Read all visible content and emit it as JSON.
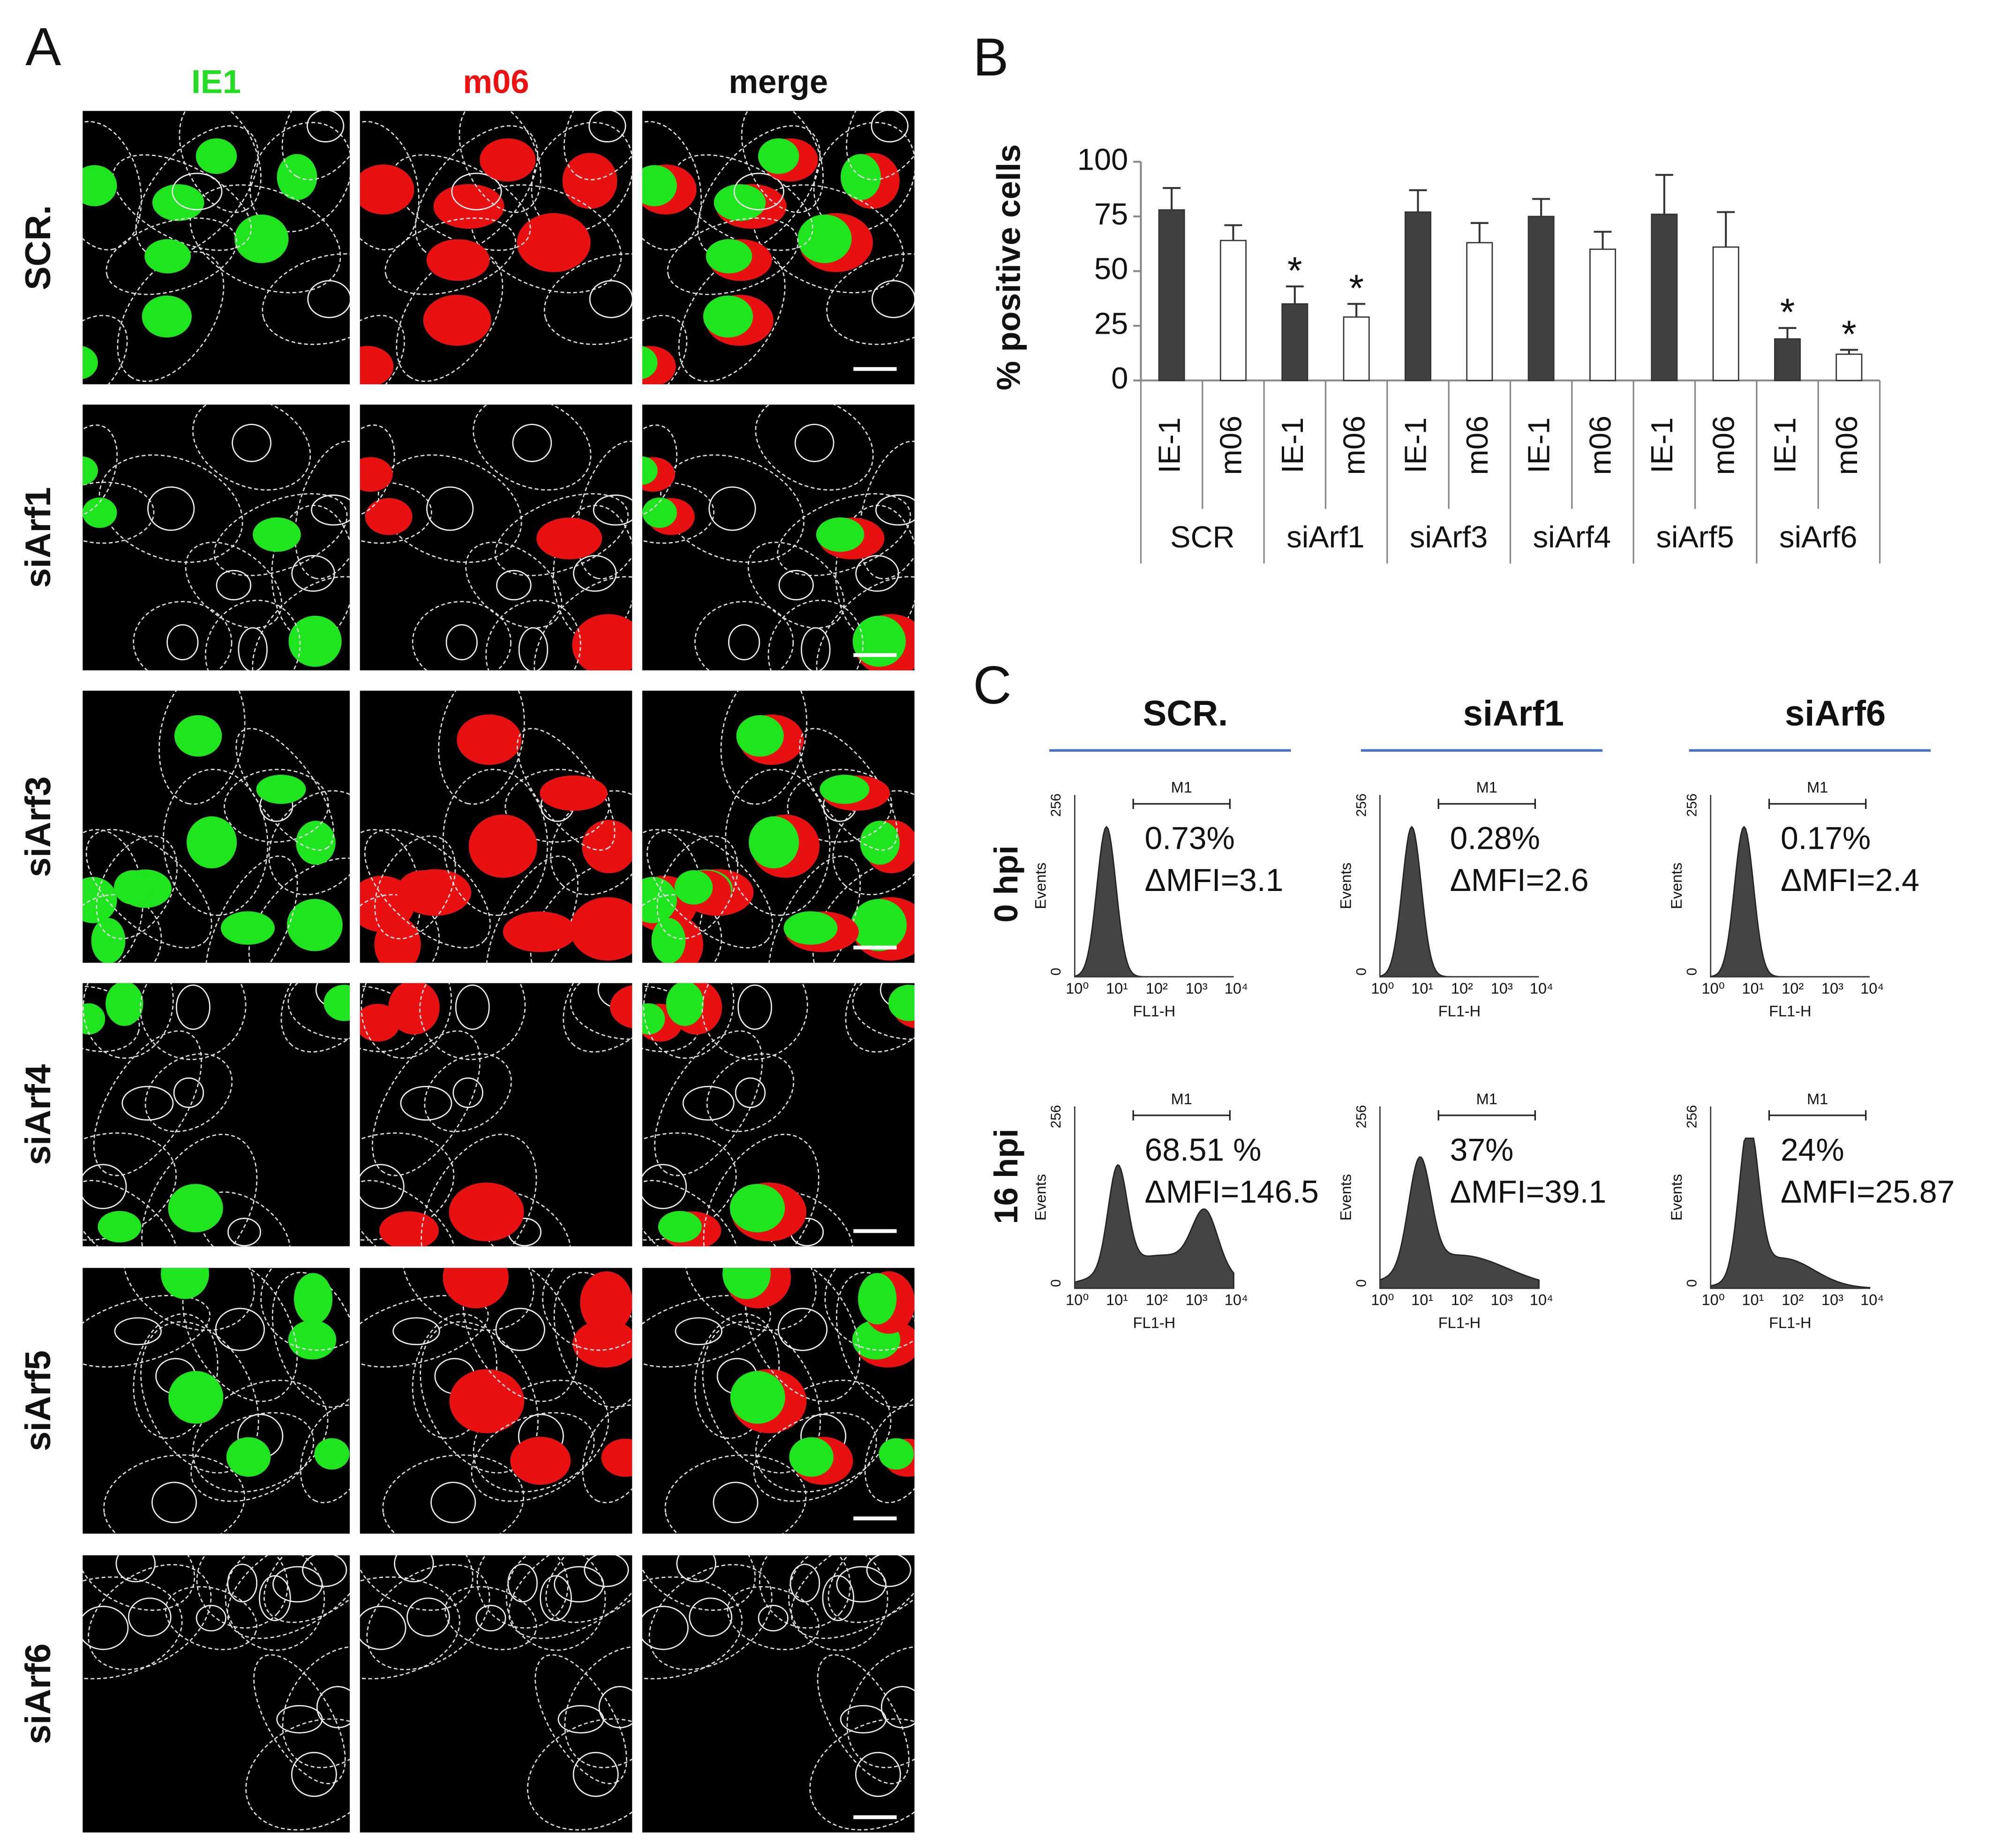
{
  "panel_a": {
    "label": "A",
    "columns": [
      {
        "text": "IE1",
        "color": "#22dd22"
      },
      {
        "text": "m06",
        "color": "#ee1111"
      },
      {
        "text": "merge",
        "color": "#111111"
      }
    ],
    "rows": [
      "SCR.",
      "siArf1",
      "siArf3",
      "siArf4",
      "siArf5",
      "siArf6"
    ]
  },
  "chart_data": {
    "type": "bar",
    "panel_label": "B",
    "y_label": "% positive cells",
    "categories": [
      "SCR",
      "siArf1",
      "siArf3",
      "siArf4",
      "siArf5",
      "siArf6"
    ],
    "series": [
      {
        "name": "IE-1",
        "color": "#404040",
        "values": [
          78,
          35,
          77,
          75,
          76,
          19
        ],
        "errors": [
          10,
          8,
          10,
          8,
          18,
          5
        ],
        "markers": [
          null,
          "*",
          null,
          null,
          null,
          "*"
        ]
      },
      {
        "name": "m06",
        "color": "#ffffff",
        "values": [
          64,
          29,
          63,
          60,
          61,
          12
        ],
        "errors": [
          7,
          6,
          9,
          8,
          16,
          2
        ],
        "markers": [
          null,
          "*",
          null,
          null,
          null,
          "*"
        ]
      }
    ],
    "ylim": [
      0,
      100
    ],
    "yticks": [
      0,
      25,
      50,
      75,
      100
    ]
  },
  "panel_c": {
    "label": "C",
    "columns": [
      "SCR.",
      "siArf1",
      "siArf6"
    ],
    "rows": [
      "0 hpi",
      "16 hpi"
    ],
    "header_line_color": "#4472c4",
    "cells": [
      [
        {
          "percent": "0.73%",
          "mfi": "ΔMFI=3.1"
        },
        {
          "percent": "0.28%",
          "mfi": "ΔMFI=2.6"
        },
        {
          "percent": "0.17%",
          "mfi": "ΔMFI=2.4"
        }
      ],
      [
        {
          "percent": "68.51 %",
          "mfi": "ΔMFI=146.5"
        },
        {
          "percent": "37%",
          "mfi": "ΔMFI=39.1"
        },
        {
          "percent": "24%",
          "mfi": "ΔMFI=25.87"
        }
      ]
    ],
    "y_axis_label": "Events",
    "y_max_label": "256",
    "y_min_label": "0",
    "x_axis_label": "FL1-H",
    "x_tick_labels": [
      "10⁰",
      "10¹",
      "10²",
      "10³",
      "10⁴"
    ],
    "gate_label": "M1"
  }
}
